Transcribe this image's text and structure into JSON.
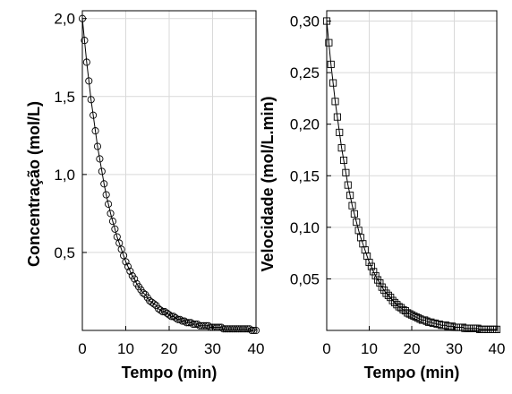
{
  "chart_data": [
    {
      "type": "line",
      "marker": "circle",
      "xlabel": "Tempo (min)",
      "ylabel": "Concentração (mol/L)",
      "xlim": [
        0,
        40
      ],
      "ylim": [
        0,
        2.05
      ],
      "xticks": [
        0,
        10,
        20,
        30,
        40
      ],
      "xtick_labels": [
        "0",
        "10",
        "20",
        "30",
        "40"
      ],
      "yticks": [
        0.5,
        1.0,
        1.5,
        2.0
      ],
      "ytick_labels": [
        "0,5",
        "1,0",
        "1,5",
        "2,0"
      ],
      "grid": true,
      "x": [
        0,
        0.5,
        1,
        1.5,
        2,
        2.5,
        3,
        3.5,
        4,
        4.5,
        5,
        5.5,
        6,
        6.5,
        7,
        7.5,
        8,
        8.5,
        9,
        9.5,
        10,
        10.5,
        11,
        11.5,
        12,
        12.5,
        13,
        13.5,
        14,
        14.5,
        15,
        15.5,
        16,
        16.5,
        17,
        17.5,
        18,
        18.5,
        19,
        19.5,
        20,
        20.5,
        21,
        21.5,
        22,
        22.5,
        23,
        23.5,
        24,
        24.5,
        25,
        25.5,
        26,
        26.5,
        27,
        27.5,
        28,
        28.5,
        29,
        29.5,
        30,
        30.5,
        31,
        31.5,
        32,
        32.5,
        33,
        33.5,
        34,
        34.5,
        35,
        35.5,
        36,
        36.5,
        37,
        37.5,
        38,
        38.5,
        39,
        39.5,
        40
      ],
      "y": [
        2.0,
        1.86,
        1.72,
        1.6,
        1.48,
        1.38,
        1.28,
        1.18,
        1.1,
        1.02,
        0.94,
        0.87,
        0.81,
        0.75,
        0.7,
        0.65,
        0.6,
        0.56,
        0.52,
        0.48,
        0.44,
        0.41,
        0.38,
        0.35,
        0.33,
        0.3,
        0.28,
        0.26,
        0.24,
        0.23,
        0.21,
        0.19,
        0.18,
        0.17,
        0.16,
        0.14,
        0.13,
        0.12,
        0.12,
        0.11,
        0.1,
        0.09,
        0.09,
        0.08,
        0.07,
        0.07,
        0.06,
        0.06,
        0.05,
        0.05,
        0.05,
        0.04,
        0.04,
        0.04,
        0.03,
        0.03,
        0.03,
        0.03,
        0.03,
        0.02,
        0.02,
        0.02,
        0.02,
        0.02,
        0.02,
        0.01,
        0.01,
        0.01,
        0.01,
        0.01,
        0.01,
        0.01,
        0.01,
        0.01,
        0.01,
        0.01,
        0.01,
        0.01,
        0.0,
        0.0,
        0.0
      ]
    },
    {
      "type": "line",
      "marker": "square",
      "xlabel": "Tempo (min)",
      "ylabel": "Velocidade (mol/L.min)",
      "xlim": [
        0,
        40
      ],
      "ylim": [
        0,
        0.31
      ],
      "xticks": [
        0,
        10,
        20,
        30,
        40
      ],
      "xtick_labels": [
        "0",
        "10",
        "20",
        "30",
        "40"
      ],
      "yticks": [
        0.05,
        0.1,
        0.15,
        0.2,
        0.25,
        0.3
      ],
      "ytick_labels": [
        "0,05",
        "0,10",
        "0,15",
        "0,20",
        "0,25",
        "0,30"
      ],
      "grid": true,
      "x": [
        0,
        0.5,
        1,
        1.5,
        2,
        2.5,
        3,
        3.5,
        4,
        4.5,
        5,
        5.5,
        6,
        6.5,
        7,
        7.5,
        8,
        8.5,
        9,
        9.5,
        10,
        10.5,
        11,
        11.5,
        12,
        12.5,
        13,
        13.5,
        14,
        14.5,
        15,
        15.5,
        16,
        16.5,
        17,
        17.5,
        18,
        18.5,
        19,
        19.5,
        20,
        20.5,
        21,
        21.5,
        22,
        22.5,
        23,
        23.5,
        24,
        24.5,
        25,
        25.5,
        26,
        26.5,
        27,
        27.5,
        28,
        28.5,
        29,
        29.5,
        30,
        30.5,
        31,
        31.5,
        32,
        32.5,
        33,
        33.5,
        34,
        34.5,
        35,
        35.5,
        36,
        36.5,
        37,
        37.5,
        38,
        38.5,
        39,
        39.5,
        40
      ],
      "y": [
        0.3,
        0.279,
        0.258,
        0.24,
        0.222,
        0.207,
        0.192,
        0.177,
        0.165,
        0.153,
        0.141,
        0.131,
        0.121,
        0.113,
        0.105,
        0.097,
        0.09,
        0.084,
        0.078,
        0.072,
        0.066,
        0.062,
        0.057,
        0.053,
        0.049,
        0.046,
        0.042,
        0.039,
        0.036,
        0.034,
        0.032,
        0.029,
        0.027,
        0.025,
        0.023,
        0.022,
        0.02,
        0.019,
        0.017,
        0.016,
        0.015,
        0.014,
        0.013,
        0.012,
        0.011,
        0.01,
        0.01,
        0.009,
        0.008,
        0.008,
        0.007,
        0.007,
        0.006,
        0.006,
        0.005,
        0.005,
        0.005,
        0.004,
        0.004,
        0.004,
        0.003,
        0.003,
        0.003,
        0.003,
        0.003,
        0.002,
        0.002,
        0.002,
        0.002,
        0.002,
        0.002,
        0.002,
        0.001,
        0.001,
        0.001,
        0.001,
        0.001,
        0.001,
        0.001,
        0.001,
        0.001
      ]
    }
  ]
}
